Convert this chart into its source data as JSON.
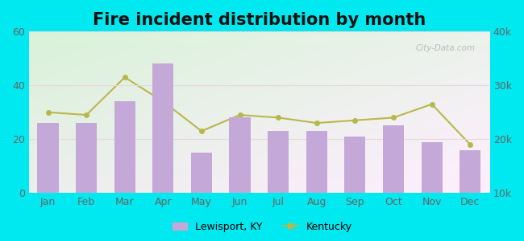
{
  "title": "Fire incident distribution by month",
  "months": [
    "Jan",
    "Feb",
    "Mar",
    "Apr",
    "May",
    "Jun",
    "Jul",
    "Aug",
    "Sep",
    "Oct",
    "Nov",
    "Dec"
  ],
  "bar_values": [
    26,
    26,
    34,
    48,
    15,
    28,
    23,
    23,
    21,
    25,
    19,
    16
  ],
  "line_values": [
    25000,
    24500,
    31500,
    27000,
    21500,
    24500,
    24000,
    23000,
    23500,
    24000,
    26500,
    19000
  ],
  "bar_color": "#c4a8d8",
  "line_color": "#b8b84a",
  "outer_bg": "#00e8f0",
  "left_ylim": [
    0,
    60
  ],
  "right_ylim": [
    10000,
    40000
  ],
  "left_yticks": [
    0,
    20,
    40,
    60
  ],
  "right_yticks": [
    10000,
    20000,
    30000,
    40000
  ],
  "right_yticklabels": [
    "10k",
    "20k",
    "30k",
    "40k"
  ],
  "legend_label_bar": "Lewisport, KY",
  "legend_label_line": "Kentucky",
  "title_fontsize": 15,
  "watermark": "City-Data.com"
}
